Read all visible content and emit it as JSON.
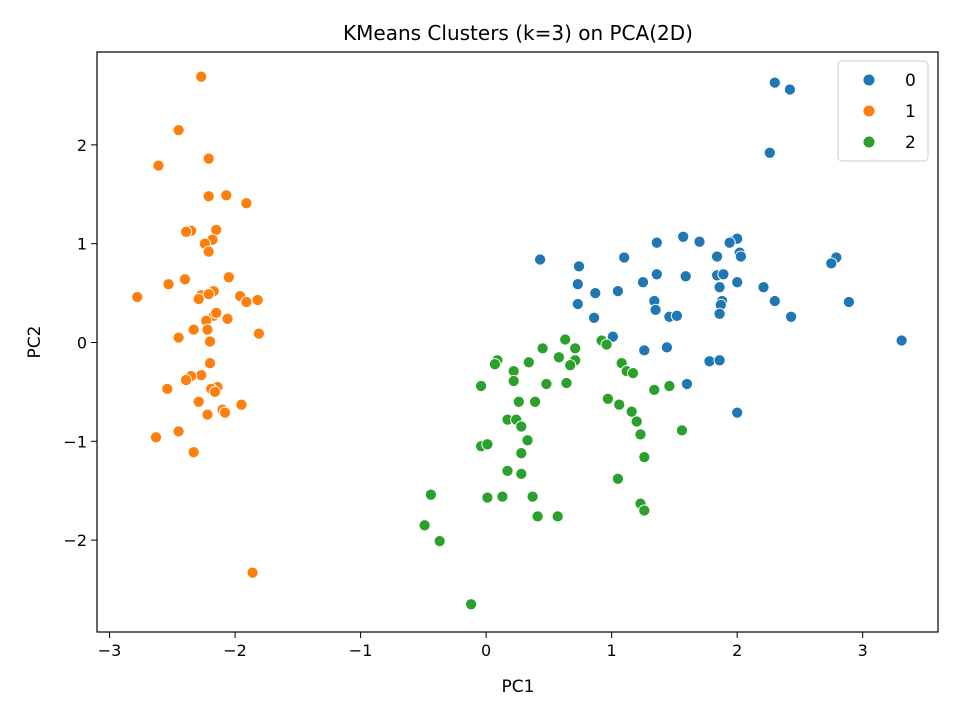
{
  "chart_data": {
    "type": "scatter",
    "title": "KMeans Clusters (k=3) on PCA(2D)",
    "xlabel": "PC1",
    "ylabel": "PC2",
    "xlim": [
      -3.1,
      3.6
    ],
    "ylim": [
      -2.93,
      2.94
    ],
    "xticks": [
      -3,
      -2,
      -1,
      0,
      1,
      2,
      3
    ],
    "yticks": [
      -2,
      -1,
      0,
      1,
      2
    ],
    "grid": false,
    "legend_position": "top-right",
    "series": [
      {
        "name": "0",
        "color": "#1f77b4",
        "points": [
          [
            2.3,
            2.63
          ],
          [
            2.42,
            2.56
          ],
          [
            2.26,
            1.92
          ],
          [
            1.57,
            1.07
          ],
          [
            1.7,
            1.02
          ],
          [
            1.98,
            1.04
          ],
          [
            2.0,
            1.05
          ],
          [
            1.94,
            1.01
          ],
          [
            1.36,
            1.01
          ],
          [
            2.02,
            0.91
          ],
          [
            2.03,
            0.87
          ],
          [
            1.1,
            0.86
          ],
          [
            1.84,
            0.87
          ],
          [
            0.43,
            0.84
          ],
          [
            2.79,
            0.86
          ],
          [
            2.75,
            0.8
          ],
          [
            0.74,
            0.77
          ],
          [
            1.36,
            0.69
          ],
          [
            1.59,
            0.67
          ],
          [
            1.84,
            0.68
          ],
          [
            1.89,
            0.69
          ],
          [
            1.25,
            0.61
          ],
          [
            2.0,
            0.61
          ],
          [
            0.73,
            0.59
          ],
          [
            2.21,
            0.56
          ],
          [
            1.86,
            0.56
          ],
          [
            0.87,
            0.5
          ],
          [
            1.05,
            0.52
          ],
          [
            1.34,
            0.42
          ],
          [
            1.88,
            0.42
          ],
          [
            2.3,
            0.42
          ],
          [
            2.89,
            0.41
          ],
          [
            0.73,
            0.39
          ],
          [
            1.87,
            0.38
          ],
          [
            1.35,
            0.33
          ],
          [
            1.86,
            0.29
          ],
          [
            1.46,
            0.26
          ],
          [
            1.52,
            0.27
          ],
          [
            2.43,
            0.26
          ],
          [
            0.86,
            0.25
          ],
          [
            1.01,
            0.06
          ],
          [
            3.31,
            0.02
          ],
          [
            1.26,
            -0.08
          ],
          [
            1.44,
            -0.05
          ],
          [
            1.78,
            -0.19
          ],
          [
            1.86,
            -0.18
          ],
          [
            1.6,
            -0.42
          ],
          [
            2.0,
            -0.71
          ]
        ]
      },
      {
        "name": "1",
        "color": "#ff7f0e",
        "points": [
          [
            -2.27,
            2.69
          ],
          [
            -2.45,
            2.15
          ],
          [
            -2.21,
            1.86
          ],
          [
            -2.61,
            1.79
          ],
          [
            -2.21,
            1.48
          ],
          [
            -2.07,
            1.49
          ],
          [
            -1.91,
            1.41
          ],
          [
            -2.35,
            1.13
          ],
          [
            -2.39,
            1.12
          ],
          [
            -2.15,
            1.14
          ],
          [
            -2.18,
            1.04
          ],
          [
            -2.24,
            1.0
          ],
          [
            -2.21,
            0.92
          ],
          [
            -2.4,
            0.64
          ],
          [
            -2.05,
            0.66
          ],
          [
            -2.53,
            0.59
          ],
          [
            -2.17,
            0.52
          ],
          [
            -2.78,
            0.46
          ],
          [
            -2.27,
            0.48
          ],
          [
            -2.21,
            0.49
          ],
          [
            -2.29,
            0.44
          ],
          [
            -1.96,
            0.47
          ],
          [
            -1.91,
            0.41
          ],
          [
            -1.82,
            0.43
          ],
          [
            -2.17,
            0.27
          ],
          [
            -2.15,
            0.3
          ],
          [
            -2.06,
            0.24
          ],
          [
            -2.23,
            0.22
          ],
          [
            -2.33,
            0.13
          ],
          [
            -2.22,
            0.13
          ],
          [
            -1.81,
            0.09
          ],
          [
            -2.45,
            0.05
          ],
          [
            -2.2,
            0.01
          ],
          [
            -2.2,
            -0.21
          ],
          [
            -2.27,
            -0.33
          ],
          [
            -2.35,
            -0.34
          ],
          [
            -2.39,
            -0.38
          ],
          [
            -2.14,
            -0.45
          ],
          [
            -2.19,
            -0.47
          ],
          [
            -2.16,
            -0.5
          ],
          [
            -2.54,
            -0.47
          ],
          [
            -2.29,
            -0.6
          ],
          [
            -1.95,
            -0.63
          ],
          [
            -2.1,
            -0.68
          ],
          [
            -2.08,
            -0.71
          ],
          [
            -2.22,
            -0.73
          ],
          [
            -2.45,
            -0.9
          ],
          [
            -2.63,
            -0.96
          ],
          [
            -2.33,
            -1.11
          ],
          [
            -1.86,
            -2.33
          ]
        ]
      },
      {
        "name": "2",
        "color": "#2ca02c",
        "points": [
          [
            0.63,
            0.03
          ],
          [
            0.92,
            0.02
          ],
          [
            0.96,
            -0.02
          ],
          [
            0.71,
            -0.06
          ],
          [
            0.45,
            -0.06
          ],
          [
            0.09,
            -0.18
          ],
          [
            0.07,
            -0.22
          ],
          [
            0.58,
            -0.15
          ],
          [
            0.34,
            -0.2
          ],
          [
            0.71,
            -0.18
          ],
          [
            0.67,
            -0.23
          ],
          [
            1.08,
            -0.21
          ],
          [
            1.12,
            -0.29
          ],
          [
            1.17,
            -0.31
          ],
          [
            0.22,
            -0.29
          ],
          [
            0.22,
            -0.39
          ],
          [
            -0.04,
            -0.44
          ],
          [
            0.48,
            -0.42
          ],
          [
            0.64,
            -0.41
          ],
          [
            1.46,
            -0.44
          ],
          [
            1.34,
            -0.48
          ],
          [
            0.26,
            -0.6
          ],
          [
            0.39,
            -0.6
          ],
          [
            0.97,
            -0.57
          ],
          [
            1.06,
            -0.63
          ],
          [
            1.16,
            -0.7
          ],
          [
            0.17,
            -0.78
          ],
          [
            0.24,
            -0.78
          ],
          [
            1.2,
            -0.8
          ],
          [
            0.28,
            -0.85
          ],
          [
            1.23,
            -0.93
          ],
          [
            1.56,
            -0.89
          ],
          [
            0.33,
            -0.99
          ],
          [
            -0.04,
            -1.05
          ],
          [
            0.01,
            -1.03
          ],
          [
            0.28,
            -1.12
          ],
          [
            1.26,
            -1.16
          ],
          [
            0.17,
            -1.3
          ],
          [
            0.28,
            -1.33
          ],
          [
            1.05,
            -1.38
          ],
          [
            -0.44,
            -1.54
          ],
          [
            0.01,
            -1.57
          ],
          [
            0.13,
            -1.56
          ],
          [
            0.37,
            -1.56
          ],
          [
            1.23,
            -1.63
          ],
          [
            1.26,
            -1.7
          ],
          [
            0.41,
            -1.76
          ],
          [
            0.57,
            -1.76
          ],
          [
            -0.49,
            -1.85
          ],
          [
            -0.37,
            -2.01
          ],
          [
            -0.12,
            -2.65
          ]
        ]
      }
    ]
  }
}
